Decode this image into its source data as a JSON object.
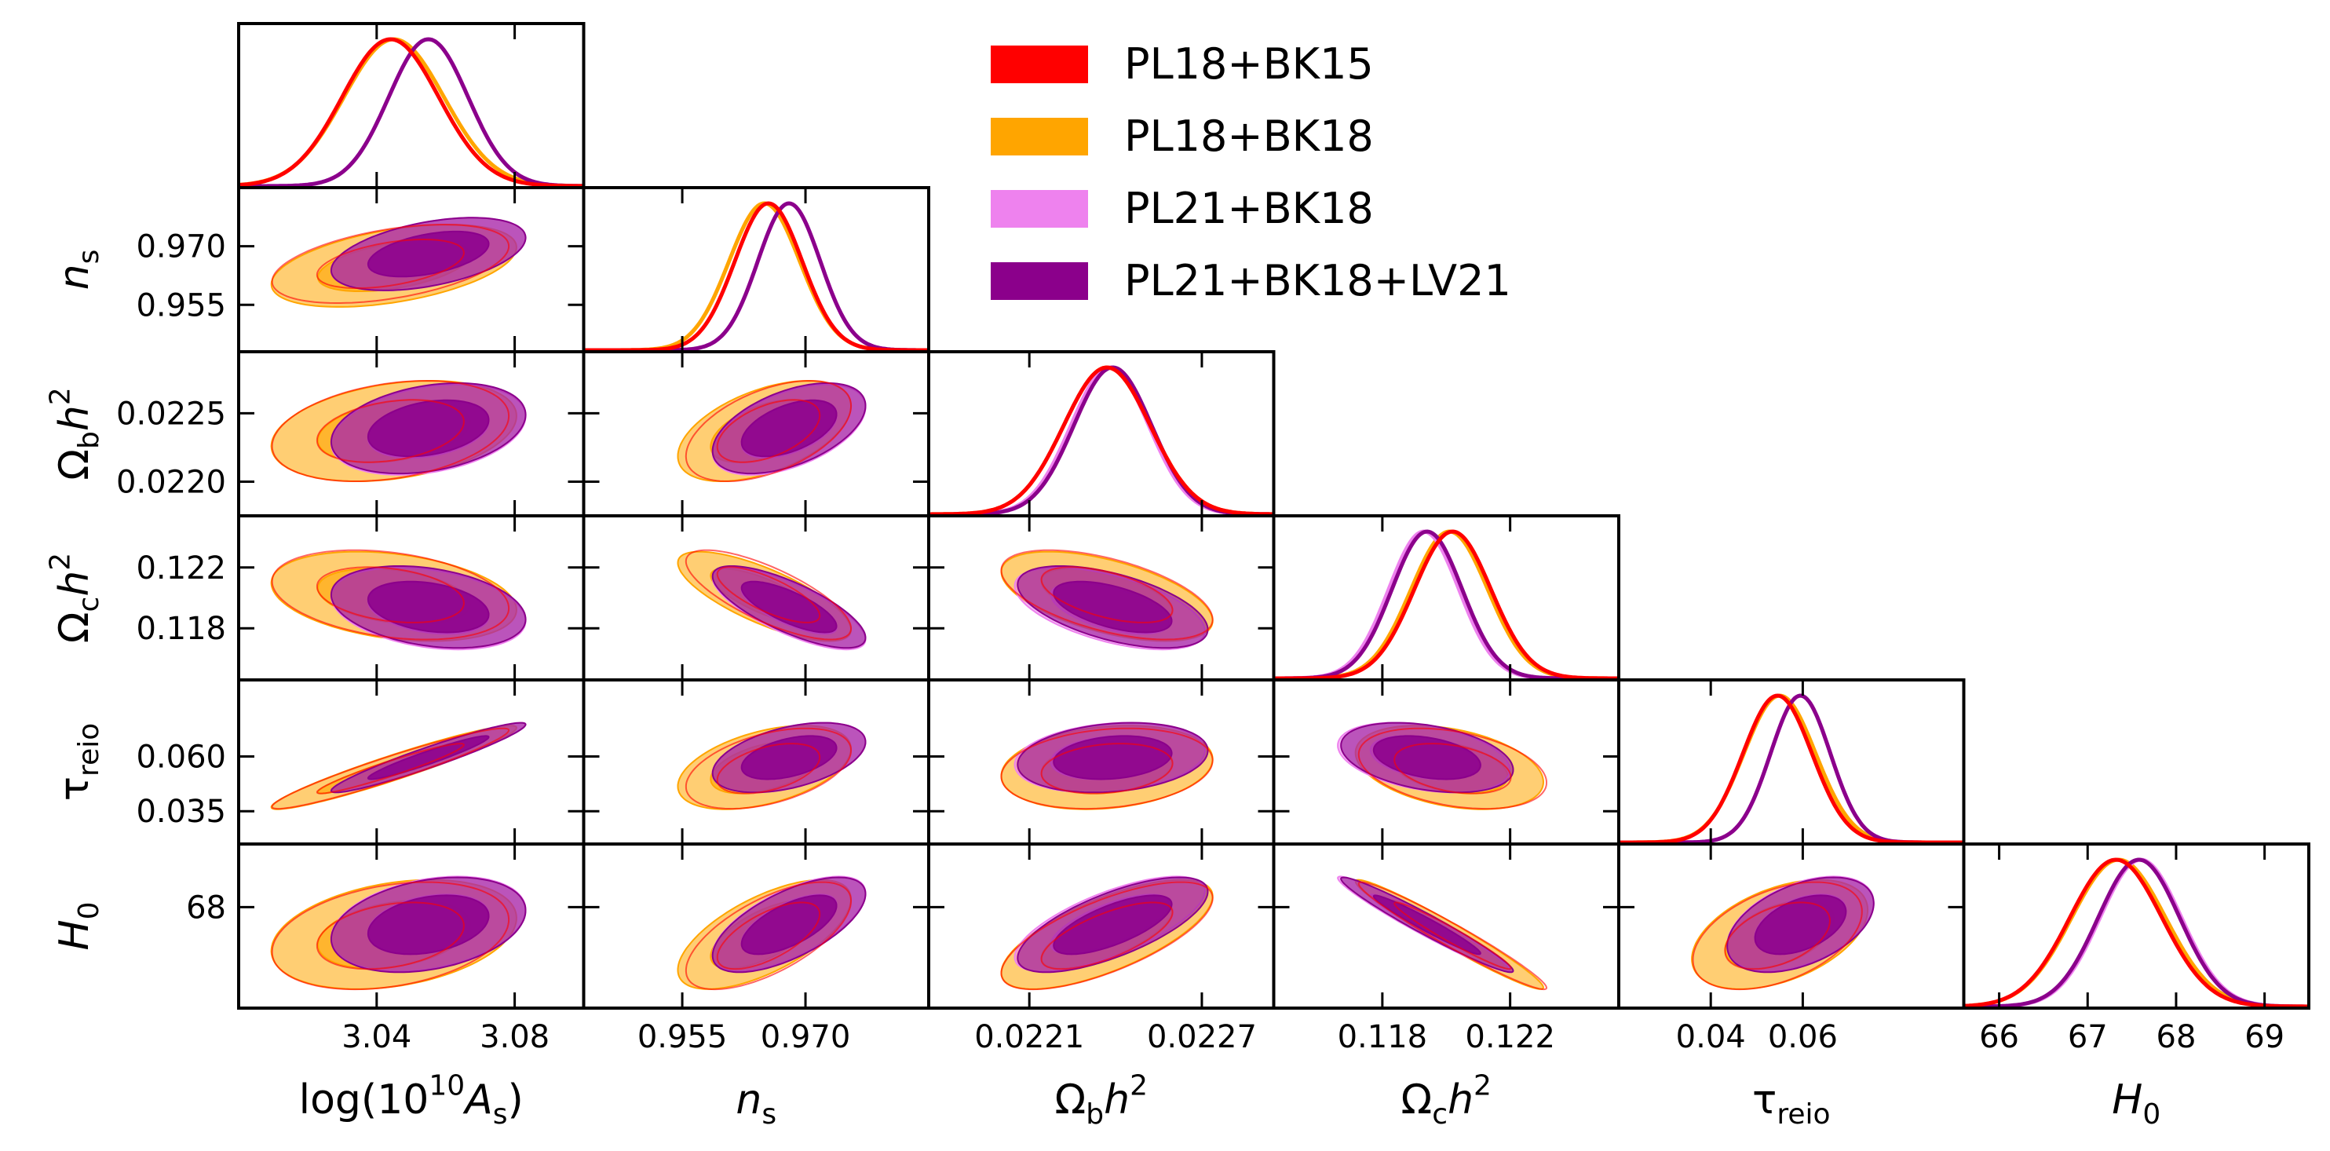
{
  "chart_data": {
    "type": "triangle-corner-plot",
    "legend_position": "top-right",
    "colors": {
      "PL18+BK15": "#ff0000",
      "PL18+BK18": "#ffa500",
      "PL21+BK18": "#ee82ee",
      "PL21+BK18+LV21": "#8b008b"
    },
    "series": [
      {
        "name": "PL18+BK15",
        "color": "#ff0000",
        "fill": false
      },
      {
        "name": "PL18+BK18",
        "color": "#ffa500",
        "fill": true
      },
      {
        "name": "PL21+BK18",
        "color": "#ee82ee",
        "fill": true
      },
      {
        "name": "PL21+BK18+LV21",
        "color": "#8b008b",
        "fill": true
      }
    ],
    "parameters": [
      {
        "key": "logA",
        "label_base": "log(10",
        "label_sup": "10",
        "label_mid": "A",
        "label_sub": "s",
        "label_end": ")",
        "range": [
          3.0,
          3.1
        ],
        "ticks": [
          3.04,
          3.08
        ],
        "tick_labels": [
          "3.04",
          "3.08"
        ]
      },
      {
        "key": "ns",
        "label_base": "n",
        "label_sub": "s",
        "range": [
          0.943,
          0.985
        ],
        "ticks": [
          0.955,
          0.97
        ],
        "tick_labels": [
          "0.955",
          "0.970"
        ]
      },
      {
        "key": "ombh2",
        "label_base": "Ω",
        "label_sub": "b",
        "label_mid": "h",
        "label_sup": "2",
        "range": [
          0.02175,
          0.02295
        ],
        "ticks": [
          0.0221,
          0.0227
        ],
        "tick_labels": [
          "0.0221",
          "0.0227"
        ],
        "y_ticks": [
          0.022,
          0.0225
        ],
        "y_tick_labels": [
          "0.0220",
          "0.0225"
        ]
      },
      {
        "key": "omch2",
        "label_base": "Ω",
        "label_sub": "c",
        "label_mid": "h",
        "label_sup": "2",
        "range": [
          0.1146,
          0.1254
        ],
        "ticks": [
          0.118,
          0.122
        ],
        "tick_labels": [
          "0.118",
          "0.122"
        ]
      },
      {
        "key": "tau",
        "label_base": "τ",
        "label_sub": "reio",
        "range": [
          0.02,
          0.095
        ],
        "ticks": [
          0.04,
          0.06
        ],
        "tick_labels": [
          "0.04",
          "0.06"
        ],
        "y_ticks": [
          0.035,
          0.06
        ],
        "y_tick_labels": [
          "0.035",
          "0.060"
        ]
      },
      {
        "key": "H0",
        "label_base": "H",
        "label_sub": "0",
        "range": [
          65.6,
          69.5
        ],
        "ticks": [
          66,
          67,
          68,
          69
        ],
        "tick_labels": [
          "66",
          "67",
          "68",
          "69"
        ],
        "y_ticks": [
          68
        ],
        "y_tick_labels": [
          "68"
        ]
      }
    ],
    "means": {
      "PL18+BK15": [
        3.044,
        0.9655,
        0.02237,
        0.1202,
        0.0545,
        67.32
      ],
      "PL18+BK18": [
        3.045,
        0.965,
        0.02237,
        0.1201,
        0.055,
        67.35
      ],
      "PL21+BK18": [
        3.055,
        0.968,
        0.02238,
        0.1193,
        0.0595,
        67.6
      ],
      "PL21+BK18+LV21": [
        3.055,
        0.968,
        0.02239,
        0.1194,
        0.0595,
        67.58
      ]
    },
    "sigmas": {
      "PL18+BK15": [
        0.014,
        0.0041,
        0.00015,
        0.0012,
        0.0075,
        0.52
      ],
      "PL18+BK18": [
        0.0145,
        0.0043,
        0.00015,
        0.0012,
        0.0078,
        0.53
      ],
      "PL21+BK18": [
        0.0115,
        0.0038,
        0.000135,
        0.0011,
        0.0065,
        0.46
      ],
      "PL21+BK18+LV21": [
        0.0115,
        0.0038,
        0.000135,
        0.0011,
        0.0065,
        0.46
      ]
    },
    "correlations": {
      "1,0": 0.45,
      "2,0": 0.3,
      "2,1": 0.5,
      "3,0": -0.3,
      "3,1": -0.75,
      "3,2": -0.55,
      "4,0": 0.95,
      "4,1": 0.45,
      "4,2": 0.2,
      "4,3": -0.35,
      "5,0": 0.3,
      "5,1": 0.65,
      "5,2": 0.7,
      "5,3": -0.97,
      "5,4": 0.45
    }
  }
}
